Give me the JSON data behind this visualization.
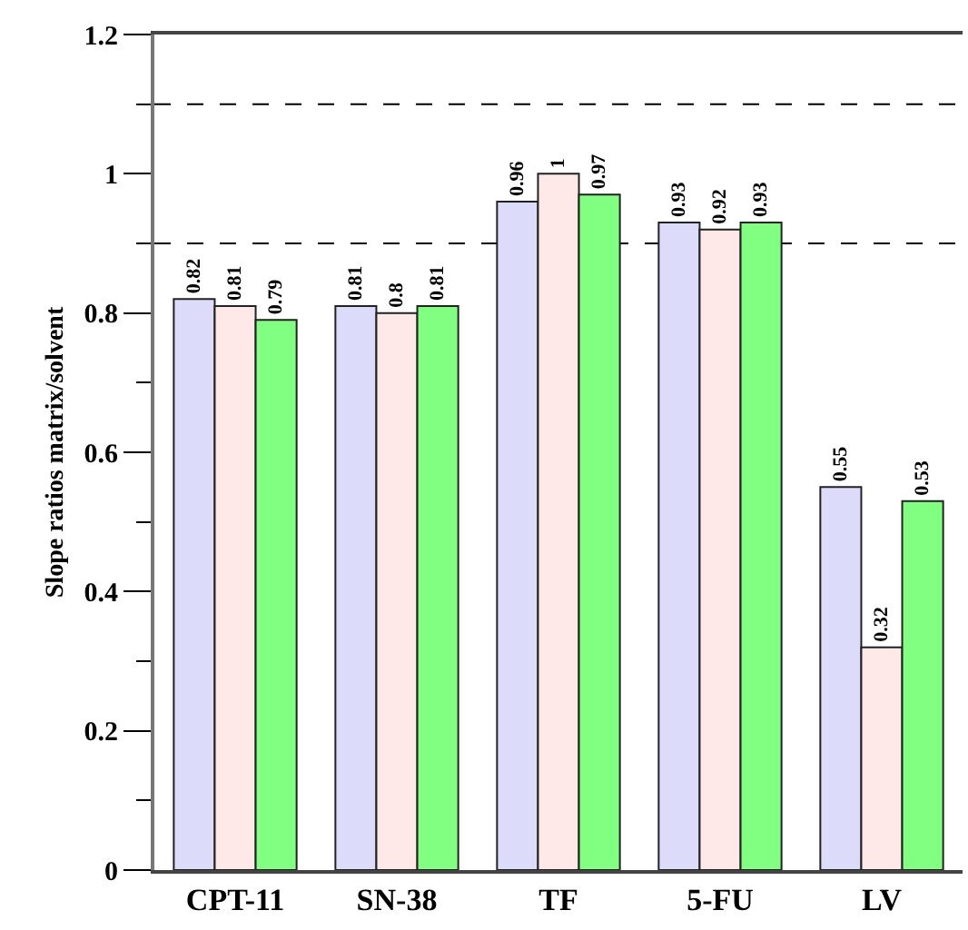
{
  "chart_data": {
    "type": "bar",
    "ylabel": "Slope ratios matrix/solvent",
    "categories": [
      "CPT-11",
      "SN-38",
      "TF",
      "5-FU",
      "LV"
    ],
    "series": [
      {
        "color": "#dcdcfa",
        "values": [
          0.82,
          0.81,
          0.96,
          0.93,
          0.55
        ]
      },
      {
        "color": "#ffe8e8",
        "values": [
          0.81,
          0.8,
          1,
          0.92,
          0.32
        ]
      },
      {
        "color": "#80ff80",
        "values": [
          0.79,
          0.81,
          0.97,
          0.93,
          0.53
        ]
      }
    ],
    "ylim": [
      0,
      1.2
    ],
    "yticks": [
      0,
      {
        "value": 0.1,
        "label": null
      },
      0.2,
      {
        "value": 0.3,
        "label": null
      },
      0.4,
      {
        "value": 0.5,
        "label": null
      },
      0.6,
      {
        "value": 0.7,
        "label": null
      },
      0.8,
      {
        "value": 0.9,
        "label": null
      },
      1,
      {
        "value": 1.1,
        "label": null
      },
      1.2
    ],
    "ref_lines": [
      {
        "axis": "y",
        "value": 0.9,
        "line_style": "dashed",
        "color": "#000000"
      },
      {
        "axis": "y",
        "value": 1.1,
        "line_style": "dashed",
        "color": "#000000"
      }
    ],
    "data_labels": true
  }
}
